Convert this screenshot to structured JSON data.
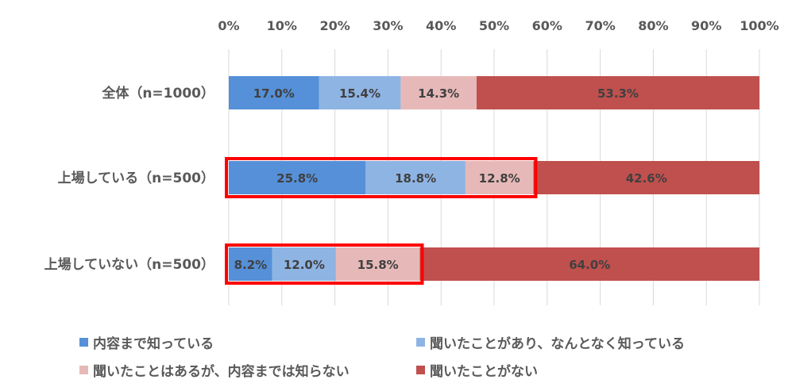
{
  "chart_data": {
    "type": "bar",
    "orientation": "horizontal",
    "stacked": true,
    "percent": true,
    "categories": [
      "全体（n=1000）",
      "上場している（n=500）",
      "上場していない（n=500）"
    ],
    "series": [
      {
        "name": "内容まで知っている",
        "color": "#5590d8",
        "label_color": "#404040",
        "values": [
          17.0,
          25.8,
          8.2
        ],
        "labels": [
          "17.0%",
          "25.8%",
          "8.2%"
        ]
      },
      {
        "name": "聞いたことがあり、なんとなく知っている",
        "color": "#8eb4e3",
        "label_color": "#404040",
        "values": [
          15.4,
          18.8,
          12.0
        ],
        "labels": [
          "15.4%",
          "18.8%",
          "12.0%"
        ]
      },
      {
        "name": "聞いたことはあるが、内容までは知らない",
        "color": "#e6b9b8",
        "label_color": "#404040",
        "values": [
          14.3,
          12.8,
          15.8
        ],
        "labels": [
          "14.3%",
          "12.8%",
          "15.8%"
        ]
      },
      {
        "name": "聞いたことがない",
        "color": "#c0504d",
        "label_color": "#404040",
        "values": [
          53.3,
          42.6,
          64.0
        ],
        "labels": [
          "53.3%",
          "42.6%",
          "64.0%"
        ]
      }
    ],
    "xlim": [
      0,
      100
    ],
    "x_ticks": [
      "0%",
      "10%",
      "20%",
      "30%",
      "40%",
      "50%",
      "60%",
      "70%",
      "80%",
      "90%",
      "100%"
    ],
    "x_axis_position": "top",
    "grid": true,
    "legend_position": "bottom",
    "highlights": [
      {
        "category_index": 1,
        "series_range": [
          0,
          2
        ],
        "color": "#ff0000"
      },
      {
        "category_index": 2,
        "series_range": [
          0,
          2
        ],
        "color": "#ff0000"
      }
    ]
  }
}
